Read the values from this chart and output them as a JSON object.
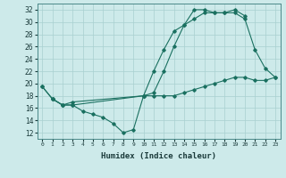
{
  "xlabel": "Humidex (Indice chaleur)",
  "ylabel": "",
  "bg_color": "#cdeaea",
  "line_color": "#1a7060",
  "grid_color": "#a8d0d0",
  "xlim": [
    -0.5,
    23.5
  ],
  "ylim": [
    11,
    33
  ],
  "yticks": [
    12,
    14,
    16,
    18,
    20,
    22,
    24,
    26,
    28,
    30,
    32
  ],
  "xticks": [
    0,
    1,
    2,
    3,
    4,
    5,
    6,
    7,
    8,
    9,
    10,
    11,
    12,
    13,
    14,
    15,
    16,
    17,
    18,
    19,
    20,
    21,
    22,
    23
  ],
  "line1_x": [
    0,
    1,
    2,
    3,
    4,
    5,
    6,
    7,
    8,
    9,
    10,
    11,
    12,
    13,
    14,
    15,
    16,
    17,
    18,
    19,
    20,
    21,
    22,
    23
  ],
  "line1_y": [
    19.5,
    17.5,
    16.5,
    16.5,
    15.5,
    15.0,
    14.5,
    13.5,
    12.0,
    12.5,
    18.0,
    18.0,
    18.0,
    18.0,
    18.5,
    19.0,
    19.5,
    20.0,
    20.5,
    21.0,
    21.0,
    20.5,
    20.5,
    21.0
  ],
  "line2_x": [
    1,
    2,
    3,
    10,
    11,
    12,
    13,
    14,
    15,
    16,
    17,
    18,
    19,
    20,
    21,
    22,
    23
  ],
  "line2_y": [
    17.5,
    16.5,
    16.5,
    18.0,
    22.0,
    25.5,
    28.5,
    29.5,
    30.5,
    31.5,
    31.5,
    31.5,
    31.5,
    30.5,
    25.5,
    22.5,
    21.0
  ],
  "line3_x": [
    0,
    1,
    2,
    3,
    10,
    11,
    12,
    13,
    14,
    15,
    16,
    17,
    18,
    19,
    20
  ],
  "line3_y": [
    19.5,
    17.5,
    16.5,
    17.0,
    18.0,
    18.5,
    22.0,
    26.0,
    29.5,
    32.0,
    32.0,
    31.5,
    31.5,
    32.0,
    31.0
  ]
}
